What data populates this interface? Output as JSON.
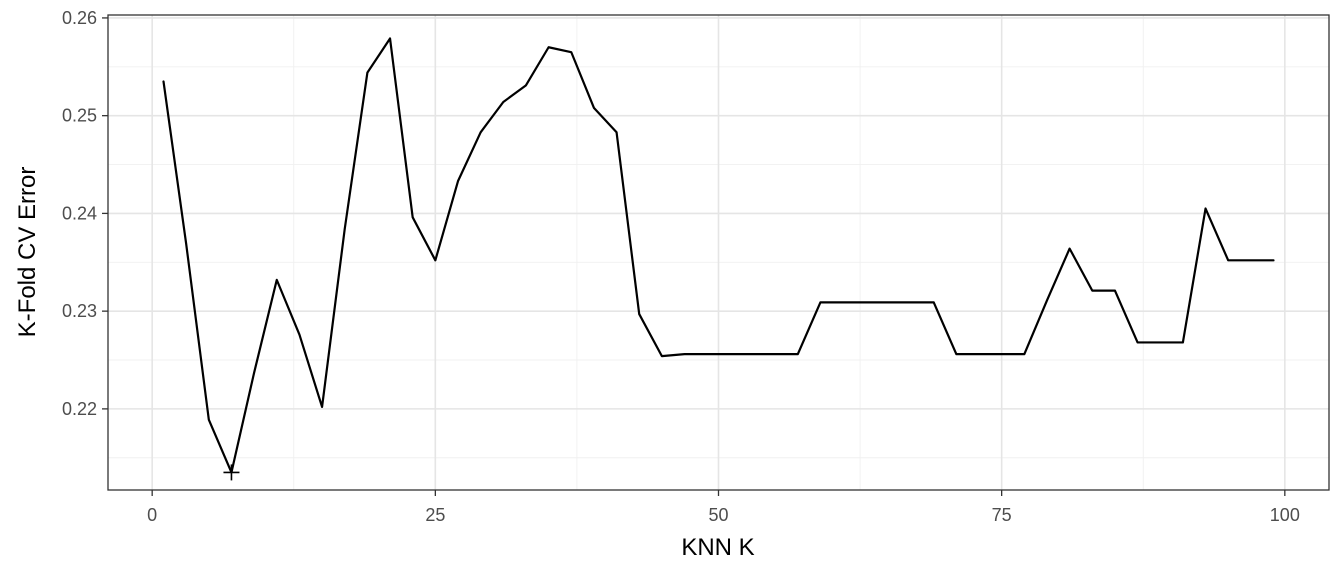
{
  "chart_data": {
    "type": "line",
    "title": "",
    "xlabel": "KNN K",
    "ylabel": "K-Fold CV Error",
    "xlim": [
      -3.9,
      103.9
    ],
    "ylim": [
      0.2117,
      0.2603
    ],
    "x_ticks": [
      0,
      25,
      50,
      75,
      100
    ],
    "x_tick_labels": [
      "0",
      "25",
      "50",
      "75",
      "100"
    ],
    "y_ticks": [
      0.22,
      0.23,
      0.24,
      0.25,
      0.26
    ],
    "y_tick_labels": [
      "0.22",
      "0.23",
      "0.24",
      "0.25",
      "0.26"
    ],
    "grid": true,
    "legend": "none",
    "series": [
      {
        "x": [
          1,
          3,
          5,
          7,
          9,
          11,
          13,
          15,
          17,
          19,
          21,
          23,
          25,
          27,
          29,
          31,
          33,
          35,
          37,
          39,
          41,
          43,
          45,
          47,
          49,
          51,
          53,
          55,
          57,
          59,
          61,
          63,
          65,
          67,
          69,
          71,
          73,
          75,
          77,
          79,
          81,
          83,
          85,
          87,
          89,
          91,
          93,
          95,
          97,
          99
        ],
        "y": [
          0.2535,
          0.2369,
          0.2189,
          0.2135,
          0.2237,
          0.2332,
          0.2276,
          0.2202,
          0.2384,
          0.2544,
          0.2579,
          0.2396,
          0.2352,
          0.2433,
          0.2483,
          0.2514,
          0.2531,
          0.257,
          0.2565,
          0.2508,
          0.2483,
          0.2297,
          0.2254,
          0.2256,
          0.2256,
          0.2256,
          0.2256,
          0.2256,
          0.2256,
          0.2309,
          0.2309,
          0.2309,
          0.2309,
          0.2309,
          0.2309,
          0.2256,
          0.2256,
          0.2256,
          0.2256,
          0.2311,
          0.2364,
          0.2321,
          0.2321,
          0.2268,
          0.2268,
          0.2268,
          0.2405,
          0.2352,
          0.2352,
          0.2352
        ],
        "color": "#000000"
      }
    ],
    "marker": {
      "x": 7,
      "y": 0.2135,
      "shape": "plus",
      "color": "#000000"
    }
  }
}
